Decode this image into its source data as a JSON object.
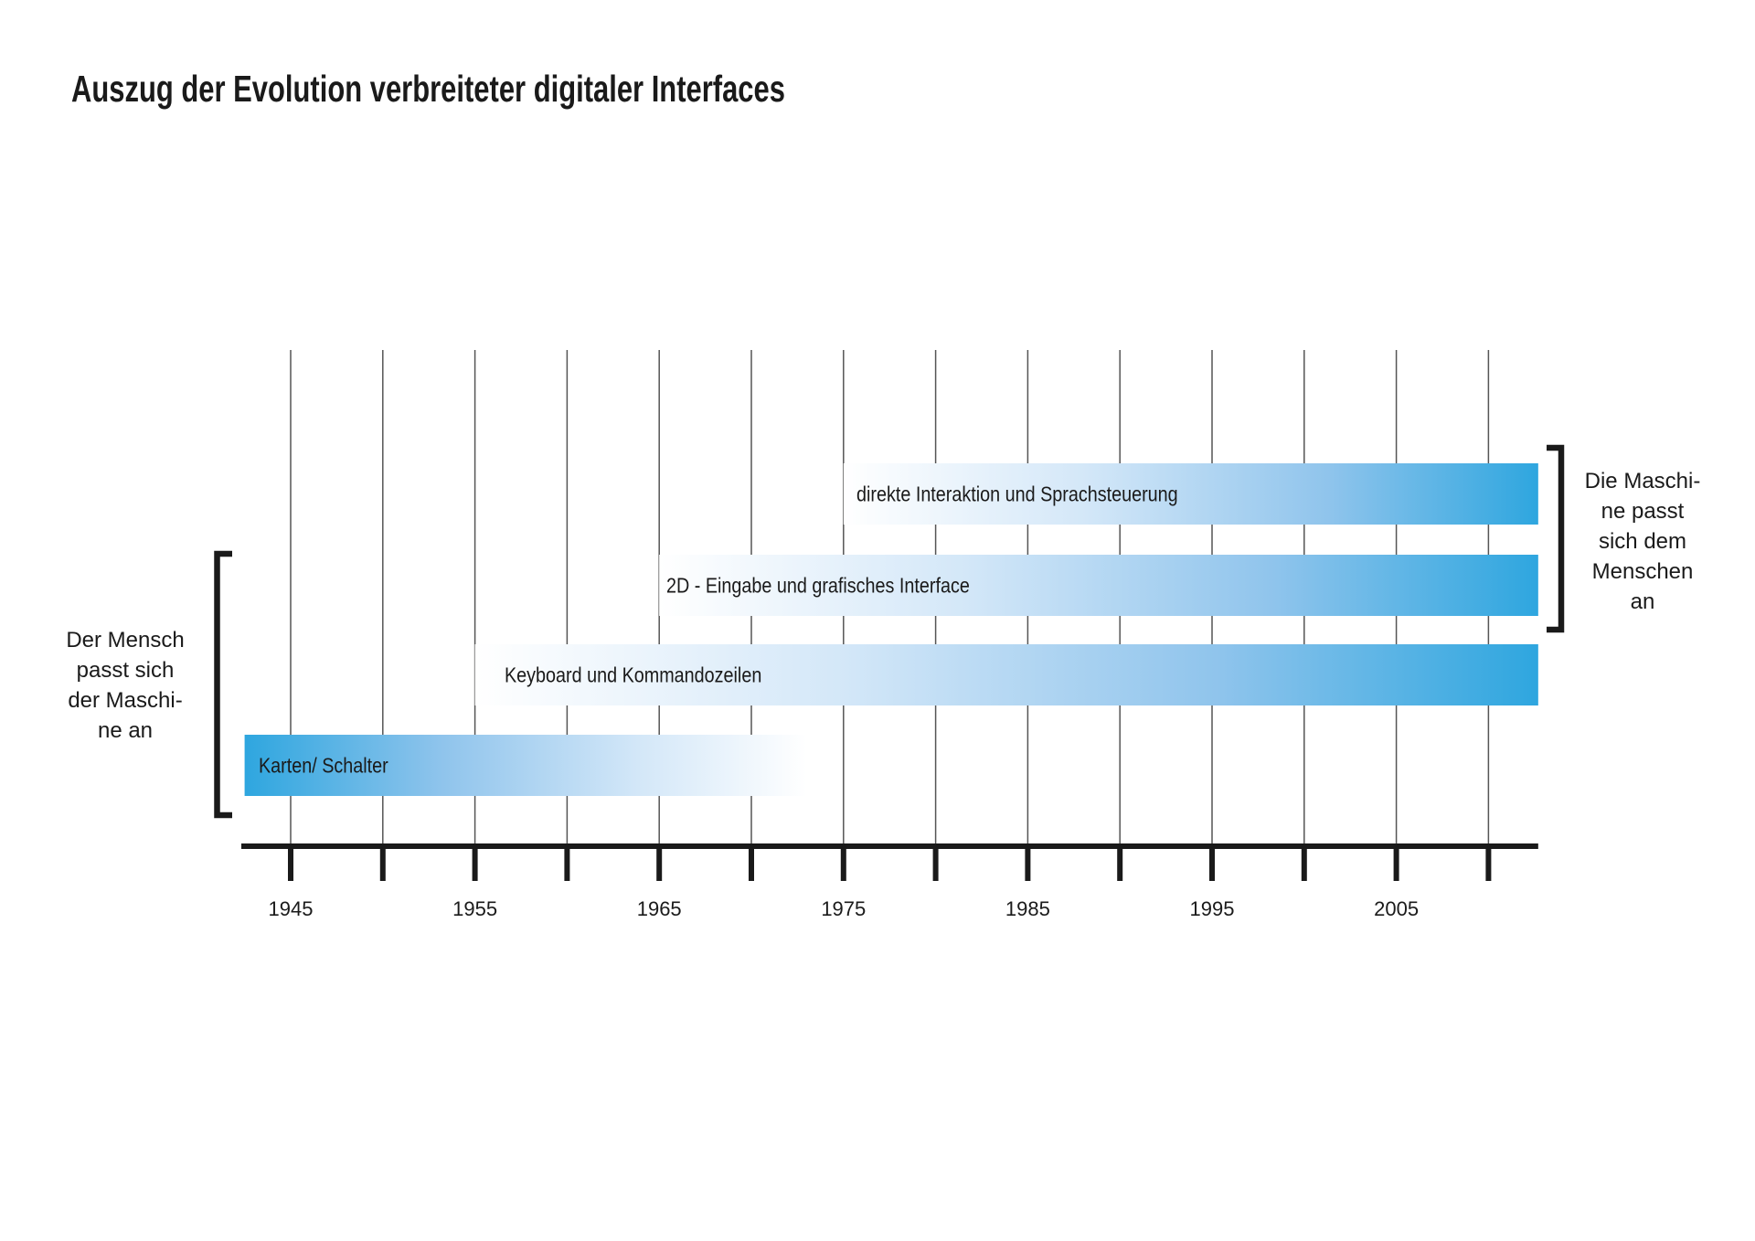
{
  "title": "Auszug der Evolution verbreiteter digitaler Interfaces",
  "left_annotation": {
    "lines": [
      "Der Mensch",
      "passt sich",
      "der Maschi-",
      "ne an"
    ]
  },
  "right_annotation": {
    "lines": [
      "Die Maschi-",
      "ne passt",
      "sich dem",
      "Menschen",
      "an"
    ]
  },
  "colors": {
    "bar_strong": "#2ea6df",
    "bar_mid": "#8fc4ec",
    "bar_light": "#d3e7f8",
    "axis": "#1a1a1a",
    "grid": "#555555"
  },
  "chart_data": {
    "type": "bar",
    "orientation": "horizontal-timeline",
    "title": "Auszug der Evolution verbreiteter digitaler Interfaces",
    "xlabel": "",
    "ylabel": "",
    "xlim": [
      1942.5,
      2012.7
    ],
    "grid": true,
    "grid_years": [
      1945,
      1950,
      1955,
      1960,
      1965,
      1970,
      1975,
      1980,
      1985,
      1990,
      1995,
      2000,
      2005,
      2010
    ],
    "tick_labels": [
      "1945",
      "1955",
      "1965",
      "1975",
      "1985",
      "1995",
      "2005"
    ],
    "tick_label_years": [
      1945,
      1955,
      1965,
      1975,
      1985,
      1995,
      2005
    ],
    "series": [
      {
        "name": "Karten/ Schalter",
        "start": 1942.5,
        "end": 1973,
        "fade": "fades-out-right"
      },
      {
        "name": "Keyboard und Kommandozeilen",
        "start": 1955,
        "end": 2012.7,
        "fade": "fades-in-left"
      },
      {
        "name": "2D - Eingabe und grafisches Interface",
        "start": 1965,
        "end": 2012.7,
        "fade": "fades-in-left"
      },
      {
        "name": "direkte Interaktion und Sprachsteuerung",
        "start": 1975,
        "end": 2012.7,
        "fade": "fades-in-left"
      }
    ]
  }
}
